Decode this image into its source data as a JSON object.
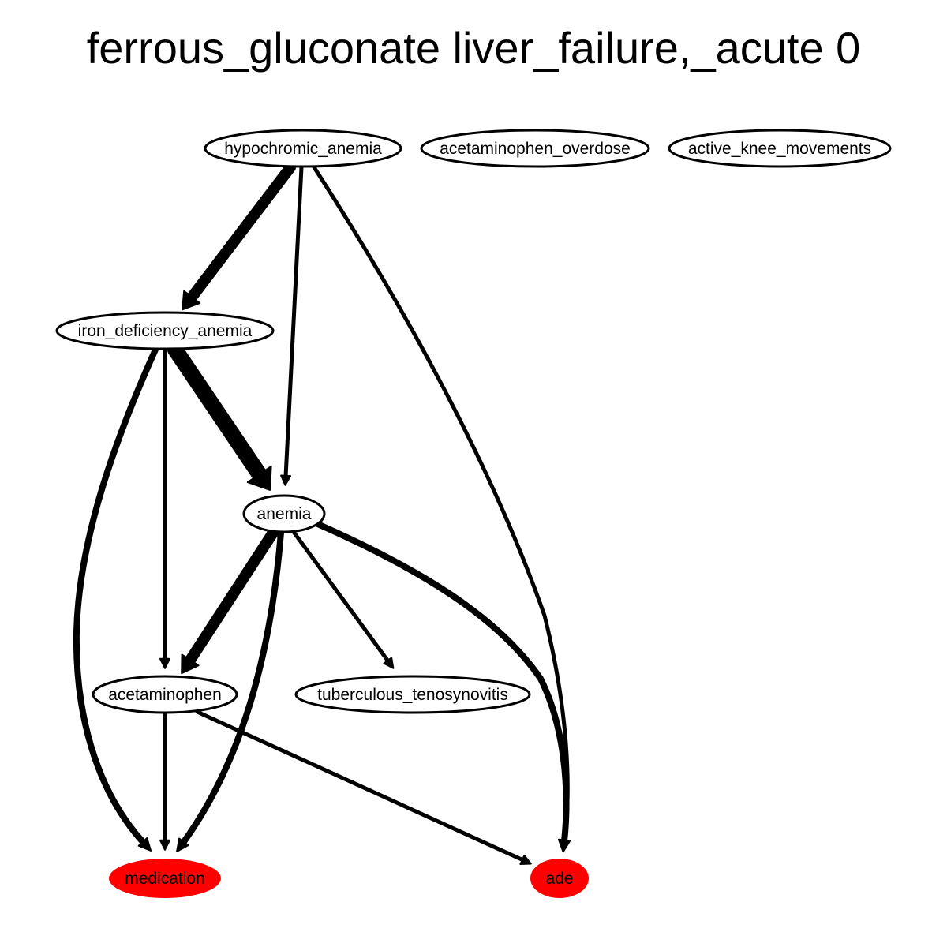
{
  "title": "ferrous_gluconate liver_failure,_acute 0",
  "colors": {
    "highlight": "#ff0000",
    "node_fill": "#ffffff",
    "stroke": "#000000"
  },
  "nodes": [
    {
      "id": "hypochromic_anemia",
      "label": "hypochromic_anemia",
      "highlight": false
    },
    {
      "id": "acetaminophen_overdose",
      "label": "acetaminophen_overdose",
      "highlight": false
    },
    {
      "id": "active_knee_movements",
      "label": "active_knee_movements",
      "highlight": false
    },
    {
      "id": "iron_deficiency_anemia",
      "label": "iron_deficiency_anemia",
      "highlight": false
    },
    {
      "id": "anemia",
      "label": "anemia",
      "highlight": false
    },
    {
      "id": "acetaminophen",
      "label": "acetaminophen",
      "highlight": false
    },
    {
      "id": "tuberculous_tenosynovitis",
      "label": "tuberculous_tenosynovitis",
      "highlight": false
    },
    {
      "id": "medication",
      "label": "medication",
      "highlight": true
    },
    {
      "id": "ade",
      "label": "ade",
      "highlight": true
    }
  ],
  "edges": [
    {
      "from": "hypochromic_anemia",
      "to": "iron_deficiency_anemia",
      "weight": "heavy"
    },
    {
      "from": "hypochromic_anemia",
      "to": "anemia",
      "weight": "light"
    },
    {
      "from": "hypochromic_anemia",
      "to": "ade",
      "weight": "light"
    },
    {
      "from": "iron_deficiency_anemia",
      "to": "anemia",
      "weight": "heaviest"
    },
    {
      "from": "iron_deficiency_anemia",
      "to": "acetaminophen",
      "weight": "light"
    },
    {
      "from": "iron_deficiency_anemia",
      "to": "medication",
      "weight": "medium"
    },
    {
      "from": "anemia",
      "to": "acetaminophen",
      "weight": "heavy"
    },
    {
      "from": "anemia",
      "to": "tuberculous_tenosynovitis",
      "weight": "light"
    },
    {
      "from": "anemia",
      "to": "medication",
      "weight": "medium"
    },
    {
      "from": "anemia",
      "to": "ade",
      "weight": "medium"
    },
    {
      "from": "acetaminophen",
      "to": "medication",
      "weight": "light"
    },
    {
      "from": "acetaminophen",
      "to": "ade",
      "weight": "light"
    }
  ]
}
